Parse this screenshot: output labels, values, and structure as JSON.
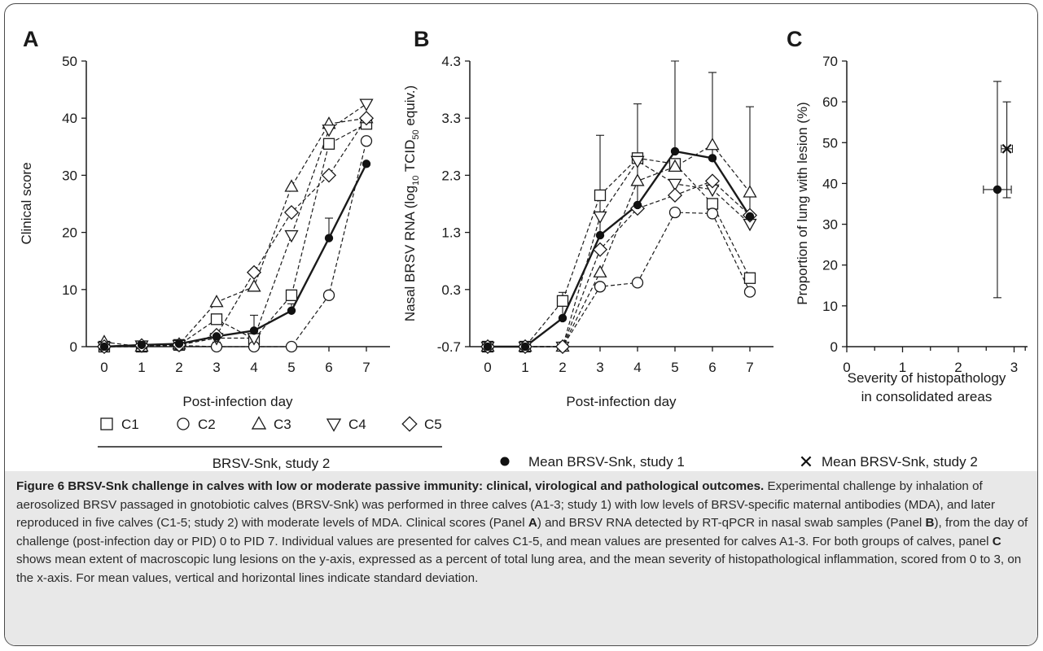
{
  "chart_data": [
    {
      "panel": "A",
      "type": "line",
      "xlabel": "Post-infection day",
      "ylabel": "Clinical score",
      "x": [
        0,
        1,
        2,
        3,
        4,
        5,
        6,
        7
      ],
      "x_ticks": [
        "0",
        "1",
        "2",
        "3",
        "4",
        "5",
        "6",
        "7"
      ],
      "ylim": [
        0,
        50
      ],
      "y_ticks": [
        "0",
        "10",
        "20",
        "30",
        "40",
        "50"
      ],
      "series": [
        {
          "name": "C1",
          "marker": "square",
          "style": "dashed",
          "values": [
            0,
            0,
            0.3,
            4.8,
            1.3,
            9,
            35.5,
            39
          ]
        },
        {
          "name": "C2",
          "marker": "circle",
          "style": "dashed",
          "values": [
            0,
            0,
            0.2,
            0,
            0,
            0,
            9,
            36
          ]
        },
        {
          "name": "C3",
          "marker": "triangle-up",
          "style": "dashed",
          "values": [
            0.8,
            0,
            0.4,
            7.8,
            10.5,
            28,
            39,
            40
          ]
        },
        {
          "name": "C4",
          "marker": "triangle-down",
          "style": "dashed",
          "values": [
            0,
            0.2,
            0.3,
            1.5,
            1.5,
            19.5,
            38,
            42.5
          ]
        },
        {
          "name": "C5",
          "marker": "diamond",
          "style": "dashed",
          "values": [
            0,
            0.2,
            0.3,
            2,
            13,
            23.5,
            30,
            40
          ]
        },
        {
          "name": "Mean BRSV-Snk, study 1",
          "marker": "filled-circle",
          "style": "solid",
          "values": [
            0,
            0.3,
            0.5,
            1.8,
            2.8,
            6.3,
            19,
            32
          ],
          "error_upper": [
            null,
            null,
            null,
            0.8,
            5.5,
            7.5,
            22.5,
            null
          ]
        }
      ]
    },
    {
      "panel": "B",
      "type": "line",
      "xlabel": "Post-infection day",
      "ylabel_main": "Nasal BRSV RNA (log",
      "ylabel_sub1": "10",
      "ylabel_mid": " TCID",
      "ylabel_sub2": "50",
      "ylabel_end": " equiv.)",
      "x": [
        0,
        1,
        2,
        3,
        4,
        5,
        6,
        7
      ],
      "x_ticks": [
        "0",
        "1",
        "2",
        "3",
        "4",
        "5",
        "6",
        "7"
      ],
      "ylim": [
        -0.7,
        4.3
      ],
      "y_ticks": [
        "-0.7",
        "0.3",
        "1.3",
        "2.3",
        "3.3",
        "4.3"
      ],
      "series": [
        {
          "name": "C1",
          "marker": "square",
          "style": "dashed",
          "values": [
            -0.7,
            -0.7,
            0.1,
            1.95,
            2.6,
            2.5,
            1.8,
            0.5
          ]
        },
        {
          "name": "C2",
          "marker": "circle",
          "style": "dashed",
          "values": [
            -0.7,
            -0.7,
            -0.7,
            0.35,
            0.42,
            1.65,
            1.63,
            0.26
          ]
        },
        {
          "name": "C3",
          "marker": "triangle-up",
          "style": "dashed",
          "values": [
            -0.7,
            -0.7,
            -0.7,
            0.6,
            2.2,
            2.45,
            2.83,
            2.0
          ]
        },
        {
          "name": "C4",
          "marker": "triangle-down",
          "style": "dashed",
          "values": [
            -0.7,
            -0.7,
            -0.7,
            1.58,
            2.55,
            2.15,
            2.05,
            1.45
          ]
        },
        {
          "name": "C5",
          "marker": "diamond",
          "style": "dashed",
          "values": [
            -0.7,
            -0.7,
            -0.7,
            1.0,
            1.72,
            1.95,
            2.2,
            1.6
          ]
        },
        {
          "name": "Mean BRSV-Snk, study 1",
          "marker": "filled-circle",
          "style": "solid",
          "values": [
            -0.7,
            -0.7,
            -0.2,
            1.25,
            1.78,
            2.72,
            2.6,
            1.58
          ],
          "error_upper": [
            null,
            null,
            0.25,
            3.0,
            3.55,
            4.3,
            4.1,
            3.5
          ]
        }
      ]
    },
    {
      "panel": "C",
      "type": "scatter",
      "xlabel_line1": "Severity of histopathology",
      "xlabel_line2": "in consolidated areas",
      "ylabel": "Proportion of lung with lesion (%)",
      "xlim": [
        0,
        3.2
      ],
      "ylim": [
        0,
        70
      ],
      "x_ticks": [
        "0",
        "1",
        "2",
        "3"
      ],
      "y_ticks": [
        "0",
        "10",
        "20",
        "30",
        "40",
        "50",
        "60",
        "70"
      ],
      "series": [
        {
          "name": "Mean BRSV-Snk, study 1",
          "marker": "filled-circle",
          "x": 2.7,
          "y": 38.5,
          "x_err": [
            2.45,
            2.95
          ],
          "y_err": [
            12,
            65
          ]
        },
        {
          "name": "Mean BRSV-Snk, study 2",
          "marker": "x",
          "x": 2.87,
          "y": 48.5,
          "x_err": [
            2.77,
            2.97
          ],
          "y_err": [
            36.5,
            60
          ]
        }
      ]
    }
  ],
  "panel_labels": [
    "A",
    "B",
    "C"
  ],
  "legend": {
    "study2_items": [
      "C1",
      "C2",
      "C3",
      "C4",
      "C5"
    ],
    "study2_group_label": "BRSV-Snk, study 2",
    "mean_study1": "Mean BRSV-Snk, study 1",
    "mean_study2": "Mean BRSV-Snk, study 2"
  },
  "caption": {
    "title": "Figure 6 BRSV-Snk challenge in calves with low or moderate passive immunity: clinical, virological and pathological outcomes.",
    "t1": " Experimental challenge by inhalation of aerosolized BRSV passaged in gnotobiotic calves (BRSV-Snk) was performed in three calves (A1-3; study 1) with low levels of BRSV-specific maternal antibodies (MDA), and later reproduced in five calves (C1-5; study 2) with moderate levels of MDA. Clinical scores (Panel ",
    "pA": "A",
    "t2": ") and BRSV RNA detected by RT-qPCR in nasal swab samples (Panel ",
    "pB": "B",
    "t3": "), from the day of challenge (post-infection day or PID) 0 to PID 7. Individual values are presented for calves C1-5, and mean values are presented for calves A1-3. For both groups of calves, panel ",
    "pC": "C",
    "t4": " shows mean extent of macroscopic lung lesions on the y-axis, expressed as a percent of total lung area, and the mean severity of histopathological inflammation, scored from 0 to 3, on the x-axis. For mean values, vertical and horizontal lines indicate standard deviation."
  }
}
